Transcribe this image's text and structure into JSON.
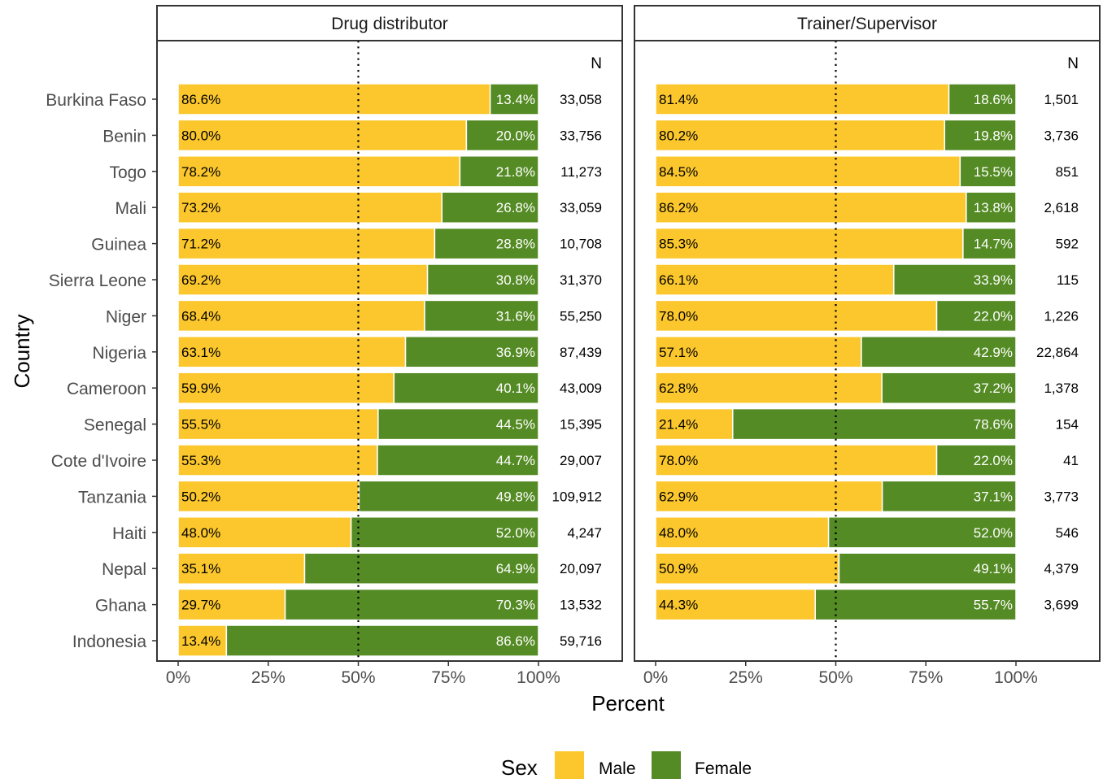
{
  "colors": {
    "male": "#fbc72c",
    "female": "#548b24",
    "panel_border": "#333333",
    "strip_fill": "#ffffff"
  },
  "chart_data": {
    "type": "bar",
    "orientation": "horizontal",
    "stacked": true,
    "xlabel": "Percent",
    "ylabel": "Country",
    "xlim": [
      0,
      100
    ],
    "x_ticks": [
      "0%",
      "25%",
      "50%",
      "75%",
      "100%"
    ],
    "reference_line": 50,
    "grid": false,
    "legend": {
      "title": "Sex",
      "position": "bottom",
      "entries": [
        "Male",
        "Female"
      ]
    },
    "n_header": "N",
    "countries": [
      "Burkina Faso",
      "Benin",
      "Togo",
      "Mali",
      "Guinea",
      "Sierra Leone",
      "Niger",
      "Nigeria",
      "Cameroon",
      "Senegal",
      "Cote d'Ivoire",
      "Tanzania",
      "Haiti",
      "Nepal",
      "Ghana",
      "Indonesia"
    ],
    "panels": [
      {
        "title": "Drug distributor",
        "series": [
          {
            "name": "Male",
            "values": [
              86.6,
              80.0,
              78.2,
              73.2,
              71.2,
              69.2,
              68.4,
              63.1,
              59.9,
              55.5,
              55.3,
              50.2,
              48.0,
              35.1,
              29.7,
              13.4
            ],
            "labels": [
              "86.6%",
              "80.0%",
              "78.2%",
              "73.2%",
              "71.2%",
              "69.2%",
              "68.4%",
              "63.1%",
              "59.9%",
              "55.5%",
              "55.3%",
              "50.2%",
              "48.0%",
              "35.1%",
              "29.7%",
              "13.4%"
            ]
          },
          {
            "name": "Female",
            "values": [
              13.4,
              20.0,
              21.8,
              26.8,
              28.8,
              30.8,
              31.6,
              36.9,
              40.1,
              44.5,
              44.7,
              49.8,
              52.0,
              64.9,
              70.3,
              86.6
            ],
            "labels": [
              "13.4%",
              "20.0%",
              "21.8%",
              "26.8%",
              "28.8%",
              "30.8%",
              "31.6%",
              "36.9%",
              "40.1%",
              "44.5%",
              "44.7%",
              "49.8%",
              "52.0%",
              "64.9%",
              "70.3%",
              "86.6%"
            ]
          }
        ],
        "n": [
          "33,058",
          "33,756",
          "11,273",
          "33,059",
          "10,708",
          "31,370",
          "55,250",
          "87,439",
          "43,009",
          "15,395",
          "29,007",
          "109,912",
          "4,247",
          "20,097",
          "13,532",
          "59,716"
        ]
      },
      {
        "title": "Trainer/Supervisor",
        "series": [
          {
            "name": "Male",
            "values": [
              81.4,
              80.2,
              84.5,
              86.2,
              85.3,
              66.1,
              78.0,
              57.1,
              62.8,
              21.4,
              78.0,
              62.9,
              48.0,
              50.9,
              44.3,
              null
            ],
            "labels": [
              "81.4%",
              "80.2%",
              "84.5%",
              "86.2%",
              "85.3%",
              "66.1%",
              "78.0%",
              "57.1%",
              "62.8%",
              "21.4%",
              "78.0%",
              "62.9%",
              "48.0%",
              "50.9%",
              "44.3%",
              null
            ]
          },
          {
            "name": "Female",
            "values": [
              18.6,
              19.8,
              15.5,
              13.8,
              14.7,
              33.9,
              22.0,
              42.9,
              37.2,
              78.6,
              22.0,
              37.1,
              52.0,
              49.1,
              55.7,
              null
            ],
            "labels": [
              "18.6%",
              "19.8%",
              "15.5%",
              "13.8%",
              "14.7%",
              "33.9%",
              "22.0%",
              "42.9%",
              "37.2%",
              "78.6%",
              "22.0%",
              "37.1%",
              "52.0%",
              "49.1%",
              "55.7%",
              null
            ]
          }
        ],
        "n": [
          "1,501",
          "3,736",
          "851",
          "2,618",
          "592",
          "115",
          "1,226",
          "22,864",
          "1,378",
          "154",
          "41",
          "3,773",
          "546",
          "4,379",
          "3,699",
          null
        ]
      }
    ]
  }
}
